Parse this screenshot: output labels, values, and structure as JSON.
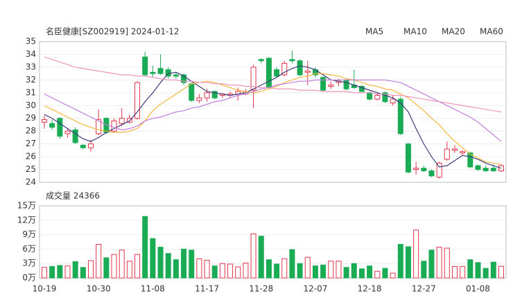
{
  "chart_data": [
    {
      "type": "candlestick",
      "title": "名臣健康[SZ002919] 2024-01-12",
      "categories": [
        "10-19",
        null,
        null,
        null,
        null,
        null,
        null,
        "10-30",
        null,
        null,
        null,
        null,
        null,
        null,
        "11-08",
        null,
        null,
        null,
        null,
        null,
        null,
        "11-17",
        null,
        null,
        null,
        null,
        null,
        null,
        "11-28",
        null,
        null,
        null,
        null,
        null,
        null,
        "12-07",
        null,
        null,
        null,
        null,
        null,
        null,
        "12-18",
        null,
        null,
        null,
        null,
        null,
        null,
        "12-27",
        null,
        null,
        null,
        null,
        null,
        null,
        "01-08",
        null,
        null,
        null
      ],
      "open": [
        28.7,
        28.6,
        29.0,
        27.8,
        28.1,
        26.9,
        26.7,
        27.8,
        29.0,
        28.0,
        28.6,
        28.7,
        29.0,
        33.8,
        32.6,
        32.9,
        32.8,
        32.4,
        32.4,
        31.7,
        30.4,
        30.6,
        31.1,
        30.8,
        30.8,
        30.9,
        30.9,
        31.2,
        33.6,
        33.7,
        32.8,
        32.4,
        33.6,
        33.5,
        32.6,
        32.8,
        32.2,
        31.5,
        31.8,
        32.0,
        31.6,
        31.5,
        31.0,
        30.5,
        31.0,
        30.2,
        30.5,
        27.0,
        25.0,
        25.1,
        24.9,
        24.4,
        25.8,
        26.5,
        26.3,
        26.3,
        25.3,
        25.1,
        25.1,
        24.9
      ],
      "high": [
        29.2,
        28.9,
        29.1,
        28.2,
        28.3,
        27.0,
        27.3,
        29.7,
        29.1,
        29.0,
        29.8,
        29.3,
        31.9,
        34.2,
        33.1,
        34.0,
        33.0,
        32.6,
        32.5,
        31.8,
        30.9,
        31.3,
        31.2,
        31.0,
        31.1,
        31.4,
        31.3,
        33.2,
        33.7,
        33.8,
        33.0,
        33.5,
        34.3,
        33.6,
        33.5,
        33.0,
        32.3,
        31.9,
        32.1,
        32.1,
        32.8,
        31.6,
        31.1,
        31.0,
        31.1,
        30.8,
        30.7,
        27.1,
        25.6,
        25.3,
        25.0,
        25.6,
        27.2,
        26.9,
        26.5,
        26.4,
        25.4,
        25.3,
        25.4,
        25.4
      ],
      "low": [
        28.2,
        28.1,
        27.4,
        27.5,
        27.0,
        26.6,
        26.4,
        27.7,
        27.8,
        27.9,
        28.4,
        28.6,
        28.9,
        32.3,
        32.2,
        32.4,
        32.1,
        32.1,
        31.6,
        30.3,
        30.2,
        30.3,
        30.5,
        30.6,
        30.6,
        30.4,
        30.8,
        29.8,
        33.3,
        31.3,
        32.2,
        32.3,
        33.3,
        32.3,
        31.6,
        32.2,
        31.1,
        31.3,
        31.5,
        31.2,
        31.3,
        31.0,
        30.4,
        30.4,
        30.2,
        30.0,
        27.7,
        24.7,
        24.6,
        24.8,
        24.4,
        24.3,
        25.7,
        26.3,
        26.1,
        25.1,
        24.9,
        24.8,
        24.8,
        24.8
      ],
      "close": [
        28.9,
        28.3,
        27.6,
        28.0,
        27.1,
        26.7,
        27.0,
        28.9,
        27.9,
        28.8,
        29.0,
        29.0,
        31.8,
        32.4,
        32.5,
        32.5,
        32.3,
        32.3,
        31.8,
        30.4,
        30.6,
        31.0,
        30.6,
        30.9,
        30.9,
        31.1,
        31.1,
        33.0,
        33.5,
        31.4,
        32.3,
        33.3,
        33.5,
        32.4,
        32.7,
        32.4,
        31.2,
        31.6,
        31.9,
        31.3,
        31.4,
        31.1,
        30.5,
        30.8,
        30.3,
        30.5,
        27.8,
        24.8,
        25.1,
        24.9,
        24.5,
        25.5,
        26.6,
        26.6,
        26.4,
        25.2,
        25.0,
        24.9,
        24.9,
        25.3
      ],
      "up_color": "#e2334a",
      "down_color": "#1aab55",
      "series": [
        {
          "name": "MA5",
          "color": "#3d3a7c",
          "values": [
            29.3,
            29.0,
            28.6,
            28.2,
            27.8,
            27.4,
            27.2,
            27.5,
            27.9,
            28.2,
            28.5,
            28.8,
            29.5,
            30.3,
            31.0,
            31.8,
            32.5,
            32.6,
            32.3,
            31.9,
            31.5,
            31.1,
            31.0,
            30.9,
            30.8,
            30.9,
            31.0,
            31.3,
            31.6,
            31.9,
            32.2,
            32.6,
            32.9,
            33.1,
            33.0,
            32.8,
            32.4,
            32.0,
            31.9,
            31.8,
            31.6,
            31.4,
            31.2,
            31.0,
            30.8,
            30.6,
            30.2,
            29.5,
            28.2,
            27.0,
            26.0,
            25.2,
            25.3,
            25.7,
            26.1,
            26.0,
            25.8,
            25.5,
            25.3,
            25.1
          ]
        },
        {
          "name": "MA10",
          "color": "#f4b63c",
          "values": [
            30.0,
            29.7,
            29.4,
            29.1,
            28.8,
            28.5,
            28.3,
            28.1,
            28.0,
            27.9,
            27.9,
            28.0,
            28.2,
            28.8,
            29.6,
            30.1,
            30.5,
            30.9,
            31.3,
            31.7,
            31.8,
            31.9,
            31.8,
            31.6,
            31.4,
            31.2,
            31.1,
            31.0,
            31.1,
            31.3,
            31.5,
            31.8,
            32.0,
            32.2,
            32.3,
            32.5,
            32.5,
            32.4,
            32.3,
            32.1,
            32.0,
            31.8,
            31.6,
            31.5,
            31.3,
            31.2,
            30.9,
            30.6,
            30.1,
            29.6,
            29.0,
            28.5,
            27.8,
            27.2,
            26.7,
            26.2,
            25.9,
            25.6,
            25.5,
            25.4
          ]
        },
        {
          "name": "MA20",
          "color": "#c27fdc",
          "values": [
            30.9,
            30.6,
            30.3,
            30.0,
            29.7,
            29.4,
            29.1,
            28.8,
            28.5,
            28.3,
            28.1,
            28.2,
            28.4,
            28.8,
            29.0,
            29.1,
            29.3,
            29.5,
            29.6,
            29.8,
            29.9,
            30.1,
            30.3,
            30.4,
            30.6,
            30.8,
            30.9,
            31.1,
            31.3,
            31.4,
            31.6,
            31.7,
            31.8,
            31.9,
            31.9,
            32.0,
            32.0,
            32.0,
            32.0,
            32.0,
            32.0,
            32.0,
            32.0,
            32.0,
            32.0,
            31.9,
            31.8,
            31.5,
            31.2,
            30.9,
            30.6,
            30.3,
            30.0,
            29.7,
            29.4,
            29.1,
            28.7,
            28.2,
            27.7,
            27.2
          ]
        },
        {
          "name": "MA60",
          "color": "#ec93bd",
          "values": [
            33.8,
            33.6,
            33.4,
            33.2,
            33.0,
            32.9,
            32.8,
            32.7,
            32.6,
            32.5,
            32.4,
            32.4,
            32.3,
            32.3,
            32.2,
            32.1,
            32.0,
            32.0,
            31.9,
            31.9,
            31.8,
            31.8,
            31.7,
            31.7,
            31.6,
            31.6,
            31.5,
            31.5,
            31.4,
            31.4,
            31.3,
            31.3,
            31.3,
            31.2,
            31.2,
            31.2,
            31.1,
            31.1,
            31.1,
            31.1,
            31.0,
            31.0,
            31.0,
            30.9,
            30.9,
            30.8,
            30.8,
            30.7,
            30.6,
            30.5,
            30.4,
            30.3,
            30.2,
            30.1,
            30.0,
            29.9,
            29.8,
            29.7,
            29.6,
            29.5
          ]
        }
      ],
      "ylim": [
        24,
        35
      ],
      "yticks": [
        24,
        25,
        26,
        27,
        28,
        29,
        30,
        31,
        32,
        33,
        34,
        35
      ],
      "grid": true
    },
    {
      "type": "bar",
      "title": "成交量 24366",
      "values": [
        2.2,
        2.4,
        2.6,
        2.5,
        3.4,
        2.2,
        3.6,
        7.0,
        4.2,
        4.9,
        5.8,
        3.5,
        4.9,
        12.8,
        8.2,
        6.4,
        5.1,
        3.8,
        6.0,
        5.8,
        4.0,
        3.7,
        2.5,
        3.0,
        2.9,
        2.3,
        3.1,
        9.2,
        8.7,
        3.8,
        2.9,
        4.0,
        5.9,
        3.0,
        4.3,
        2.5,
        2.7,
        3.5,
        3.5,
        2.2,
        3.0,
        1.9,
        2.5,
        1.4,
        2.0,
        1.0,
        7.0,
        6.5,
        10.0,
        3.5,
        5.8,
        6.4,
        6.2,
        2.4,
        2.4,
        3.8,
        3.2,
        2.0,
        3.3,
        2.4366
      ],
      "ylim": [
        0,
        15
      ],
      "yticks": [
        {
          "value": 0,
          "label": "0万"
        },
        {
          "value": 3,
          "label": "3万"
        },
        {
          "value": 6,
          "label": "6万"
        },
        {
          "value": 9,
          "label": "9万"
        },
        {
          "value": 12,
          "label": "12万"
        },
        {
          "value": 15,
          "label": "15万"
        }
      ],
      "grid": true
    }
  ]
}
